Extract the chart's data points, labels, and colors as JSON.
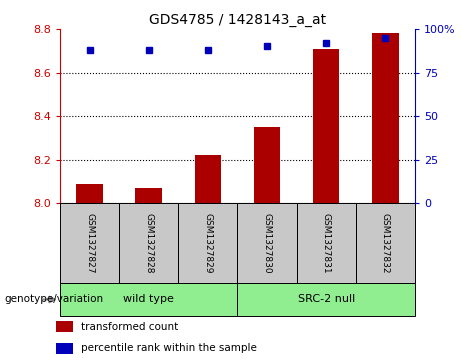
{
  "title": "GDS4785 / 1428143_a_at",
  "samples": [
    "GSM1327827",
    "GSM1327828",
    "GSM1327829",
    "GSM1327830",
    "GSM1327831",
    "GSM1327832"
  ],
  "transformed_counts": [
    8.09,
    8.07,
    8.22,
    8.35,
    8.71,
    8.78
  ],
  "percentile_ranks": [
    88,
    88,
    88,
    90,
    92,
    95
  ],
  "ylim_left": [
    8.0,
    8.8
  ],
  "ylim_right": [
    0,
    100
  ],
  "yticks_left": [
    8.0,
    8.2,
    8.4,
    8.6,
    8.8
  ],
  "yticks_right": [
    0,
    25,
    50,
    75,
    100
  ],
  "groups": [
    {
      "label": "wild type",
      "indices": [
        0,
        1,
        2
      ],
      "color": "#90EE90"
    },
    {
      "label": "SRC-2 null",
      "indices": [
        3,
        4,
        5
      ],
      "color": "#90EE90"
    }
  ],
  "bar_color": "#AA0000",
  "dot_color": "#0000BB",
  "bar_width": 0.45,
  "bg_color": "#FFFFFF",
  "left_axis_color": "#CC0000",
  "right_axis_color": "#0000BB",
  "sample_box_color": "#C8C8C8",
  "genotype_label": "genotype/variation",
  "legend_items": [
    {
      "label": "transformed count",
      "color": "#AA0000"
    },
    {
      "label": "percentile rank within the sample",
      "color": "#0000BB"
    }
  ]
}
